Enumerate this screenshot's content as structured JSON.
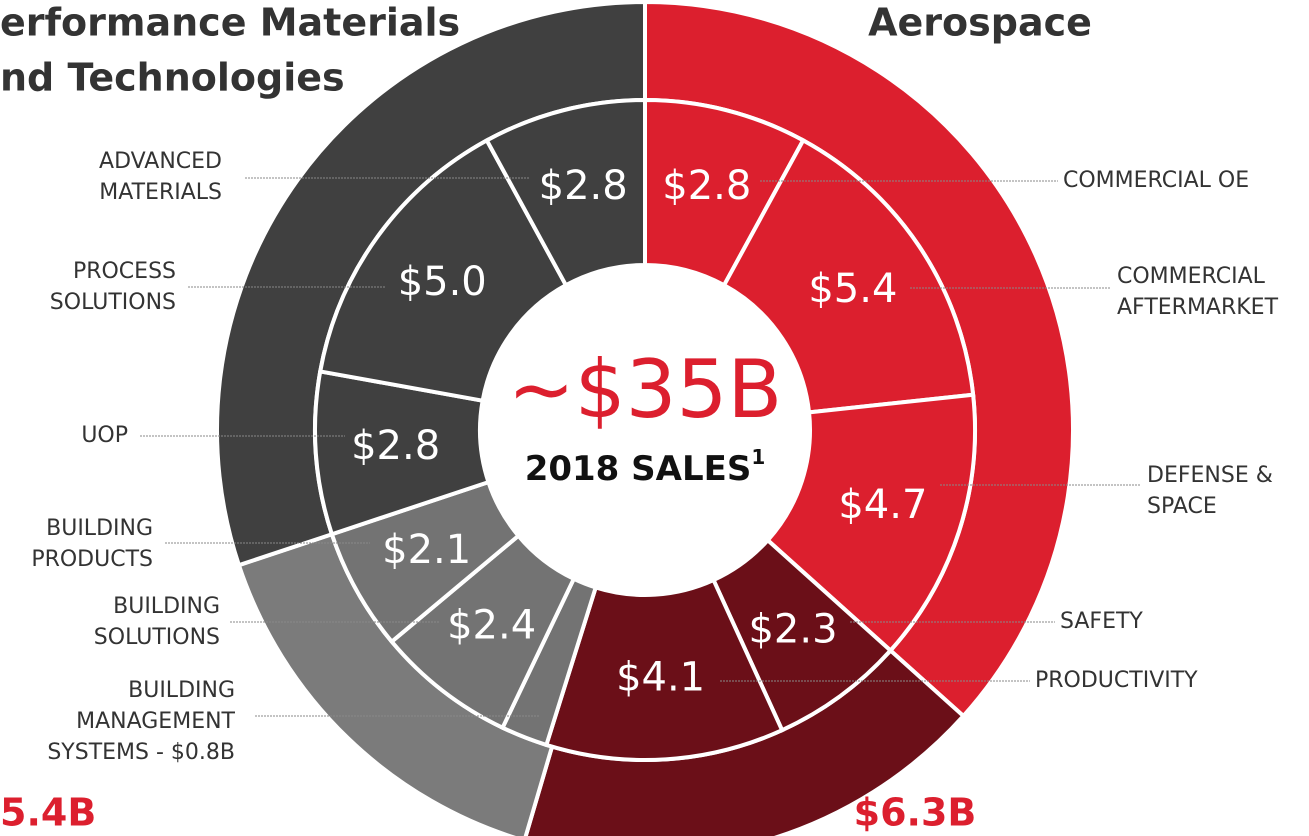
{
  "chart_data": {
    "type": "donut",
    "center": {
      "title": "~$35B",
      "subtitle": "2018 SALES",
      "footnote_mark": "1"
    },
    "titles": {
      "aerospace": "Aerospace",
      "pmt": [
        "erformance Materials",
        "nd Technologies"
      ]
    },
    "outer": {
      "values": [
        12.9,
        6.3,
        5.4,
        10.6
      ],
      "value_labels": [
        null,
        "$6.3B",
        "5.4B",
        null
      ],
      "colors": [
        "#dc1f2e",
        "#6b0f18",
        "#7b7b7b",
        "#404040"
      ]
    },
    "inner": {
      "categories": [
        [
          "COMMERCIAL OE"
        ],
        [
          "COMMERCIAL",
          "AFTERMARKET"
        ],
        [
          "DEFENSE &",
          "SPACE"
        ],
        [
          "SAFETY"
        ],
        [
          "PRODUCTIVITY"
        ],
        [
          "BUILDING",
          "MANAGEMENT",
          "SYSTEMS - $0.8B"
        ],
        [
          "BUILDING",
          "SOLUTIONS"
        ],
        [
          "BUILDING",
          "PRODUCTS"
        ],
        [
          "UOP"
        ],
        [
          "PROCESS",
          "SOLUTIONS"
        ],
        [
          "ADVANCED",
          "MATERIALS"
        ]
      ],
      "values": [
        2.8,
        5.4,
        4.7,
        2.3,
        4.1,
        0.8,
        2.4,
        2.1,
        2.8,
        5.0,
        2.8
      ],
      "value_labels": [
        "$2.8",
        "$5.4",
        "$4.7",
        "$2.3",
        "$4.1",
        null,
        "$2.4",
        "$2.1",
        "$2.8",
        "$5.0",
        "$2.8"
      ],
      "colors": [
        "#dc1f2e",
        "#dc1f2e",
        "#dc1f2e",
        "#6b0f18",
        "#6b0f18",
        "#737373",
        "#737373",
        "#737373",
        "#404040",
        "#404040",
        "#404040"
      ]
    }
  }
}
